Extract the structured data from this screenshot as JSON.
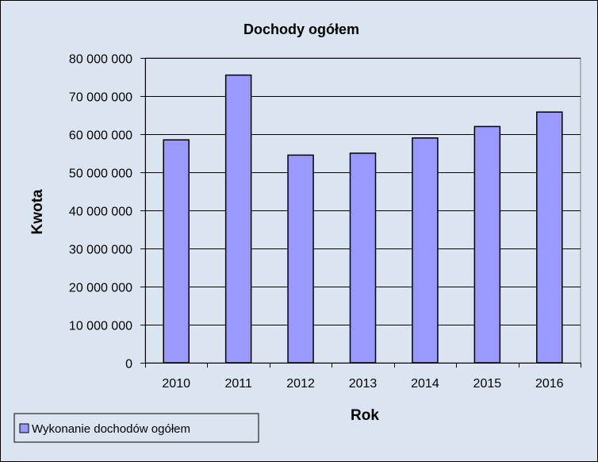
{
  "chart_data": {
    "type": "bar",
    "title": "Dochody  ogółem",
    "xlabel": "Rok",
    "ylabel": "Kwota",
    "categories": [
      "2010",
      "2011",
      "2012",
      "2013",
      "2014",
      "2015",
      "2016"
    ],
    "series": [
      {
        "name": "Wykonanie dochodów ogółem",
        "values": [
          58500000,
          75500000,
          54500000,
          55000000,
          59000000,
          62000000,
          65800000
        ],
        "color": "#9999ff"
      }
    ],
    "ylim": [
      0,
      80000000
    ],
    "yticks": [
      0,
      10000000,
      20000000,
      30000000,
      40000000,
      50000000,
      60000000,
      70000000,
      80000000
    ],
    "ytick_labels": [
      "0",
      "10 000 000",
      "20 000 000",
      "30 000 000",
      "40 000 000",
      "50 000 000",
      "60 000 000",
      "70 000 000",
      "80 000 000"
    ],
    "grid": true,
    "legend_position": "bottom-left",
    "colors": {
      "background": "#dbe5f1",
      "plot_area": "#dbe5f1",
      "bar": "#9999ff",
      "gridline": "#000000"
    }
  }
}
